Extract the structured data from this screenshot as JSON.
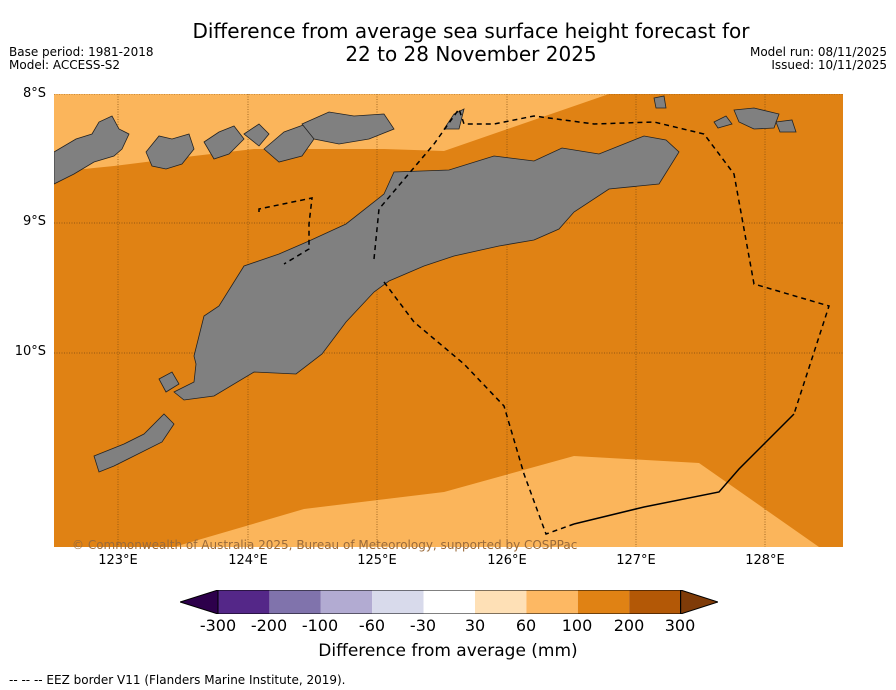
{
  "header": {
    "title_line1": "Difference from average sea surface height forecast for",
    "title_line2": "22 to 28 November 2025",
    "base_period": "Base period: 1981-2018",
    "model": "Model: ACCESS-S2",
    "model_run": "Model run: 08/11/2025",
    "issued": "Issued: 10/11/2025"
  },
  "map": {
    "lat_labels": [
      "8°S",
      "9°S",
      "10°S"
    ],
    "lon_labels": [
      "123°E",
      "124°E",
      "125°E",
      "126°E",
      "127°E",
      "128°E"
    ],
    "colors": {
      "band_60_100": "#fbb55b",
      "band_100_200": "#e08214",
      "land": "#808080",
      "grid": "#7a4a10"
    },
    "copyright": "© Commonwealth of Australia 2025, Bureau of Meteorology, supported by COSPPac"
  },
  "colorbar": {
    "ticks": [
      "-300",
      "-200",
      "-100",
      "-60",
      "-30",
      "30",
      "60",
      "100",
      "200",
      "300"
    ],
    "colors": [
      "#2d004b",
      "#542788",
      "#8073ac",
      "#b2abd2",
      "#d8daeb",
      "#ffffff",
      "#fee0b6",
      "#fdb863",
      "#e08214",
      "#b35806",
      "#7f3b08"
    ],
    "label": "Difference from average (mm)"
  },
  "legend": {
    "eez": "--  --  -- EEZ border V11 (Flanders Marine Institute, 2019)."
  }
}
